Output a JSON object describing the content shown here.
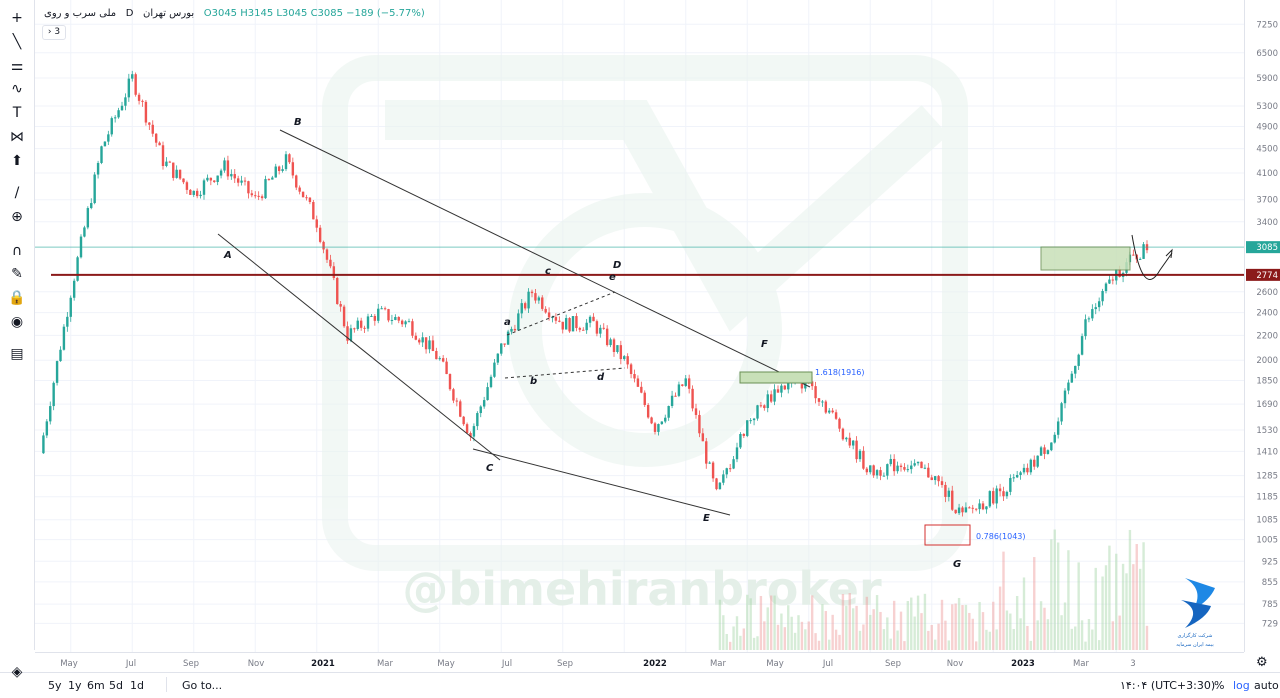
{
  "legend": {
    "symbol": "ملی سرب و روی",
    "interval": "D",
    "exchange": "بورس تهران",
    "ohlc": "O3045 H3145 L3045 C3085 −189 (−5.77%)",
    "collapse_label": "› 3"
  },
  "toolbar": {
    "items": [
      "crosshair-icon",
      "trendline-icon",
      "fib-icon",
      "brush-icon",
      "text-icon",
      "pattern-icon",
      "measure-icon",
      "arrow-up-icon",
      "ruler-icon",
      "zoom-icon",
      "magnet-icon",
      "lock-draw-icon",
      "lock-icon",
      "eye-icon",
      "trash-icon"
    ],
    "layers_icon": "layers-icon"
  },
  "price_axis": {
    "ticks": [
      "7250",
      "6500",
      "5900",
      "5300",
      "4900",
      "4500",
      "4100",
      "3700",
      "3400",
      "2600",
      "2400",
      "2200",
      "2000",
      "1850",
      "1690",
      "1530",
      "1410",
      "1285",
      "1185",
      "1085",
      "1005",
      "925",
      "855",
      "785",
      "729"
    ],
    "current_price_label": "3085",
    "resistance_label": "2774"
  },
  "time_axis": {
    "ticks": [
      "May",
      "Jul",
      "Sep",
      "Nov",
      "2021",
      "Mar",
      "May",
      "Jul",
      "Sep",
      "2022",
      "Mar",
      "May",
      "Jul",
      "Sep",
      "Nov",
      "2023",
      "Mar",
      "3"
    ]
  },
  "bottom_bar": {
    "ranges": [
      "5y",
      "1y",
      "6m",
      "5d",
      "1d"
    ],
    "goto": "Go to...",
    "clock": "۱۴:۰۴ (UTC+3:30)",
    "percent": "%",
    "log": "log",
    "auto": "auto"
  },
  "annotations": {
    "wave_labels": [
      "A",
      "B",
      "C",
      "D",
      "E",
      "F",
      "G"
    ],
    "sub_labels": [
      "a",
      "b",
      "c",
      "d",
      "e"
    ],
    "fib_1618": "1.618(1916)",
    "fib_0786": "0.786(1043)",
    "watermark": "@bimehiranbroker",
    "brand_text_1": "شرکت کارگزاری",
    "brand_text_2": "بیمه‌ ایران‌ سرمایه"
  },
  "colors": {
    "up": "#26a69a",
    "down": "#ef5350",
    "resistance_line": "#8b1a1a",
    "current_line": "#26a69a",
    "box_fill": "#c8e0b8",
    "axis_text": "#787b86",
    "watermark": "#e9f3ee"
  },
  "chart_data": {
    "type": "candlestick",
    "title": "ملی سرب و روی · D · بورس تهران",
    "y_scale": "log",
    "ylim": [
      700,
      7600
    ],
    "x": [
      "2020-04",
      "2020-05",
      "2020-06",
      "2020-07",
      "2020-08",
      "2020-09",
      "2020-10",
      "2020-11",
      "2020-12",
      "2021-01",
      "2021-02",
      "2021-03",
      "2021-04",
      "2021-05",
      "2021-06",
      "2021-07",
      "2021-08",
      "2021-09",
      "2021-10",
      "2021-11",
      "2021-12",
      "2022-01",
      "2022-02",
      "2022-03",
      "2022-04",
      "2022-05",
      "2022-06",
      "2022-07",
      "2022-08",
      "2022-09",
      "2022-10",
      "2022-11",
      "2022-12",
      "2023-01",
      "2023-02",
      "2023-03",
      "2023-04"
    ],
    "close": [
      1400,
      2600,
      4500,
      5900,
      4300,
      3800,
      4200,
      3700,
      4300,
      3400,
      2200,
      2400,
      2300,
      2000,
      1500,
      2100,
      2600,
      2300,
      2300,
      2000,
      1550,
      1850,
      1190,
      1580,
      1800,
      1850,
      1550,
      1300,
      1350,
      1290,
      1100,
      1190,
      1290,
      1500,
      2300,
      2800,
      3085
    ],
    "last": {
      "open": 3045,
      "high": 3145,
      "low": 3045,
      "close": 3085,
      "change": -189,
      "change_pct": -5.77
    },
    "horizontal_levels": [
      {
        "value": 2774
      },
      {
        "value": 3085
      }
    ],
    "fib_levels": [
      {
        "label": "1.618",
        "value": 1916
      },
      {
        "label": "0.786",
        "value": 1043
      }
    ],
    "grid": true,
    "legend_position": "top-left"
  }
}
